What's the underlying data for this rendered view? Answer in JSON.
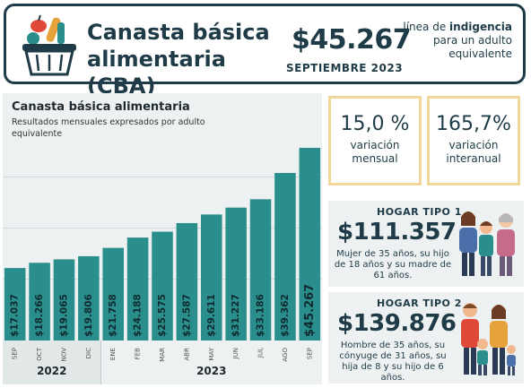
{
  "header": {
    "title": "Canasta básica alimentaria (CBA)",
    "price": "$45.267",
    "date": "SEPTIEMBRE 2023",
    "desc_pre": "línea de",
    "desc_bold": "indigencia",
    "desc_post": "para un adulto equivalente",
    "icon": "basket-icon"
  },
  "chart": {
    "title": "Canasta básica alimentaria",
    "subtitle": "Resultados mensuales expresados por adulto equivalente"
  },
  "chart_data": {
    "type": "bar",
    "title": "Canasta básica alimentaria",
    "subtitle": "Resultados mensuales expresados por adulto equivalente",
    "categories": [
      "SEP",
      "OCT",
      "NOV",
      "DIC",
      "ENE",
      "FEB",
      "MAR",
      "ABR",
      "MAY",
      "JUN",
      "JUL",
      "AGO",
      "SEP"
    ],
    "values": [
      17037,
      18266,
      19065,
      19806,
      21758,
      24188,
      25575,
      27587,
      29611,
      31227,
      33186,
      39362,
      45267
    ],
    "labels": [
      "$17.037",
      "$18.266",
      "$19.065",
      "$19.806",
      "$21.758",
      "$24.188",
      "$25.575",
      "$27.587",
      "$29.611",
      "$31.227",
      "$33.186",
      "$39.362",
      "$45.267"
    ],
    "years": [
      {
        "label": "2022",
        "from": 0,
        "to": 3
      },
      {
        "label": "2023",
        "from": 4,
        "to": 12
      }
    ],
    "ylim": [
      0,
      48000
    ],
    "grid": true,
    "colors": {
      "bar": "#2a8f8c",
      "bar_label": "#102a30",
      "background": "#eef1f1",
      "past_months_band": "#e2e7e8"
    }
  },
  "stats": [
    {
      "value": "15,0 %",
      "label": "variación mensual"
    },
    {
      "value": "165,7%",
      "label": "variación interanual"
    }
  ],
  "hogares": [
    {
      "title": "HOGAR TIPO 1",
      "price": "$111.357",
      "desc": "Mujer de 35 años, su hijo de 18 años y su madre de 61 años.",
      "icon": "family-three-icon"
    },
    {
      "title": "HOGAR TIPO 2",
      "price": "$139.876",
      "desc": "Hombre de 35 años, su cónyuge de 31 años, su hija de 8 y su hijo de 6 años.",
      "icon": "family-four-icon"
    }
  ]
}
